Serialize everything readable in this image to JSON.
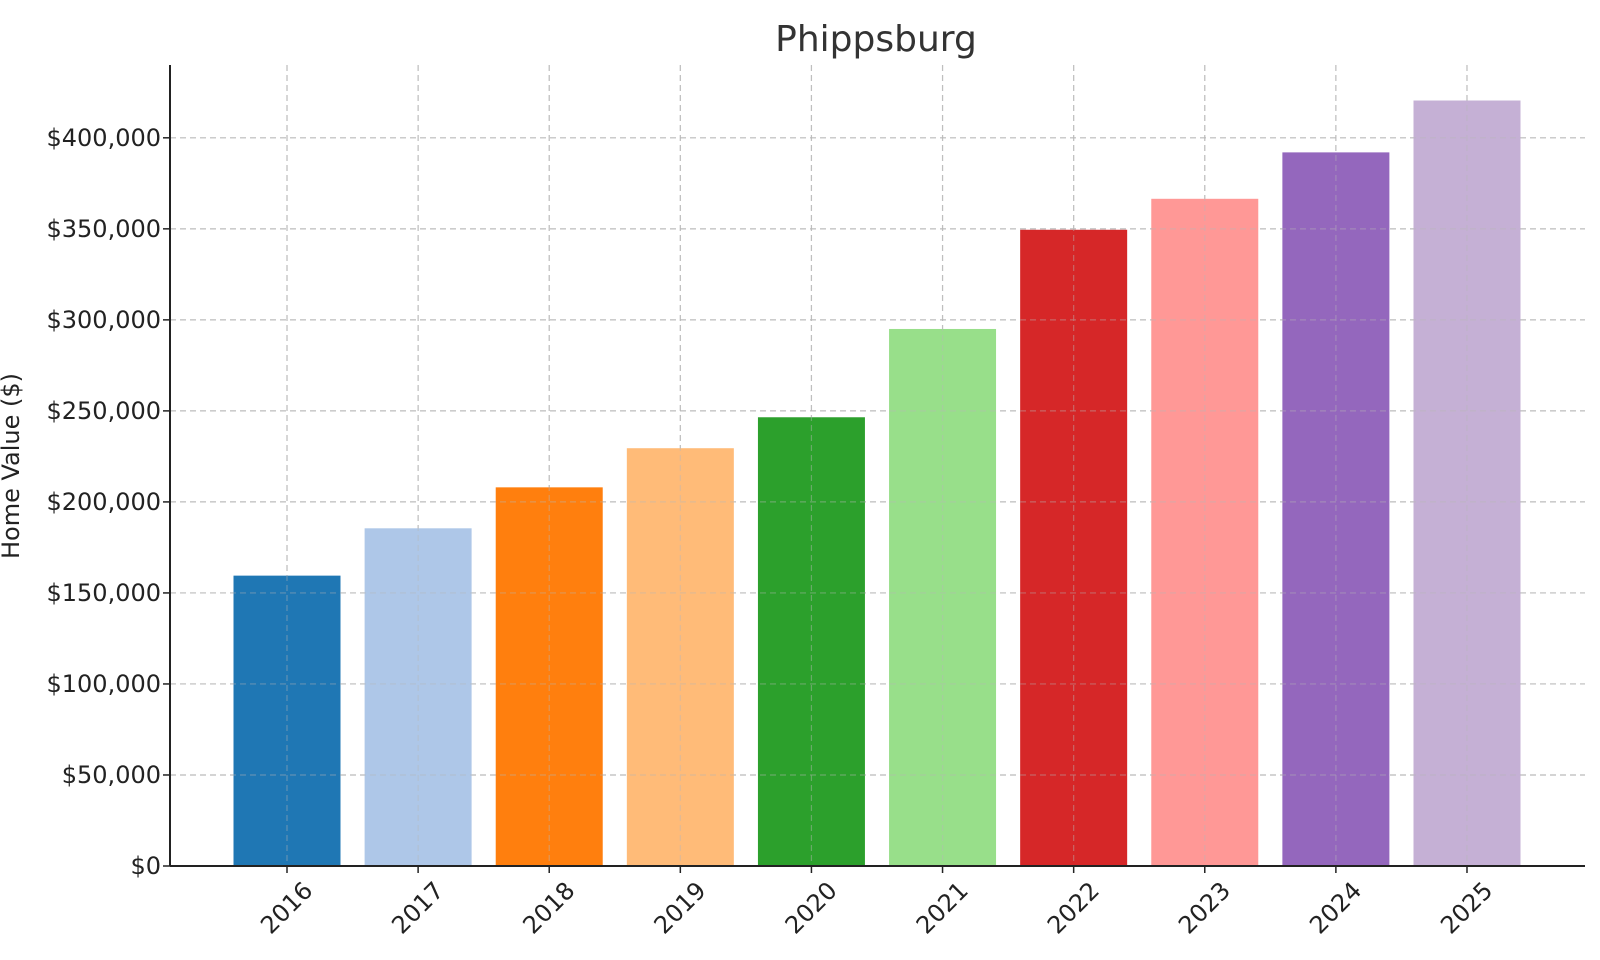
{
  "chart_data": {
    "type": "bar",
    "title": "Phippsburg",
    "xlabel": "",
    "ylabel": "Home Value ($)",
    "categories": [
      "2016",
      "2017",
      "2018",
      "2019",
      "2020",
      "2021",
      "2022",
      "2023",
      "2024",
      "2025"
    ],
    "values": [
      159500,
      185500,
      208000,
      229500,
      246500,
      295000,
      349500,
      366500,
      392000,
      420500
    ],
    "colors": [
      "#1f77b4",
      "#aec7e8",
      "#ff7f0e",
      "#ffbb78",
      "#2ca02c",
      "#98df8a",
      "#d62728",
      "#ff9896",
      "#9467bd",
      "#c5b0d5"
    ],
    "ylim": [
      0,
      440000
    ],
    "yticks": [
      0,
      50000,
      100000,
      150000,
      200000,
      250000,
      300000,
      350000,
      400000
    ],
    "ytick_labels": [
      "$0",
      "$50,000",
      "$100,000",
      "$150,000",
      "$200,000",
      "$250,000",
      "$300,000",
      "$350,000",
      "$400,000"
    ],
    "grid": true,
    "legend": "none"
  }
}
